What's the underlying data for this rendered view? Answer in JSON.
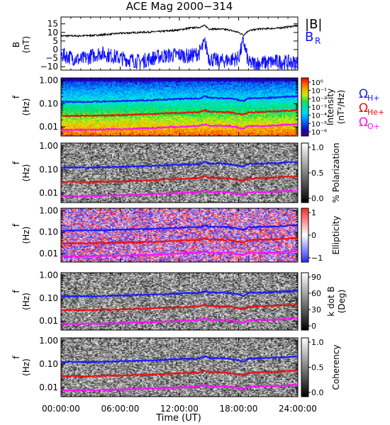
{
  "title": "ACE Mag 2000−314",
  "xlabel": "Time (UT)",
  "xticks": [
    "00:00:00",
    "06:00:00",
    "12:00:00",
    "18:00:00",
    "24:00:00"
  ],
  "freq_ticks": [
    "1.00",
    "0.10",
    "0.01"
  ],
  "legend": {
    "B_total": "|B|",
    "B_R": "B",
    "B_R_sub": "R",
    "omega_H": "Ω",
    "omega_H_sub": "H+",
    "omega_He": "Ω",
    "omega_He_sub": "He+",
    "omega_O": "Ω",
    "omega_O_sub": "O+"
  },
  "colors": {
    "B_total": "#000000",
    "B_R": "#1010ff",
    "H_plus": "#1a1aff",
    "He_plus": "#e81010",
    "O_plus": "#ff10ff"
  },
  "chart_data": [
    {
      "type": "line",
      "panel": "magnetic-field",
      "ylabel": "B",
      "yunit": "(nT)",
      "yticks": [
        "15",
        "10",
        "5",
        "0",
        "−5",
        "−10"
      ],
      "ylim": [
        -12,
        19
      ],
      "x_hours": [
        0,
        2,
        4,
        6,
        8,
        10,
        12,
        13,
        14,
        14.6,
        15,
        16,
        17,
        18,
        18.5,
        19,
        20,
        22,
        24
      ],
      "series": [
        {
          "name": "|B|",
          "values": [
            8,
            8,
            8.5,
            9.5,
            10,
            10.5,
            11.5,
            12.5,
            13,
            14,
            12,
            12,
            11.5,
            10,
            8.5,
            11,
            12,
            12.5,
            14
          ]
        },
        {
          "name": "B_R",
          "values": [
            -3,
            -6,
            -2,
            -5,
            -7,
            -4,
            -3,
            -4,
            -2,
            4,
            -5,
            -7,
            -6,
            -5,
            5,
            -8,
            -8,
            -7,
            -8
          ]
        }
      ]
    },
    {
      "type": "heatmap",
      "panel": "power-spectral-density",
      "ylabel": "f",
      "yunit": "(Hz)",
      "yscale": "log",
      "ylim": [
        0.004,
        1.3
      ],
      "colorbar_label": "Intensity",
      "colorbar_unit": "(nT²/Hz)",
      "colorbar_ticks": [
        "10⁰",
        "10⁻¹",
        "10⁻²",
        "10⁻³",
        "10⁻⁴",
        "10⁻⁵",
        "10⁻⁶"
      ]
    },
    {
      "type": "heatmap",
      "panel": "percent-polarization",
      "ylabel": "f",
      "yunit": "(Hz)",
      "yscale": "log",
      "colorbar_label": "% Polarization",
      "colorbar_ticks": [
        "1.0",
        "0.5",
        "0.0"
      ]
    },
    {
      "type": "heatmap",
      "panel": "ellipticity",
      "ylabel": "f",
      "yunit": "(Hz)",
      "yscale": "log",
      "colorbar_label": "Ellipticity",
      "colorbar_ticks": [
        "1",
        "0",
        "−1"
      ]
    },
    {
      "type": "heatmap",
      "panel": "k-dot-b",
      "ylabel": "f",
      "yunit": "(Hz)",
      "yscale": "log",
      "colorbar_label": "k dot B",
      "colorbar_unit": "(Deg)",
      "colorbar_ticks": [
        "90",
        "60",
        "30",
        "0"
      ]
    },
    {
      "type": "heatmap",
      "panel": "coherency",
      "ylabel": "f",
      "yunit": "(Hz)",
      "yscale": "log",
      "colorbar_label": "Coherency",
      "colorbar_ticks": [
        "1.0",
        "0.5",
        "0.0"
      ]
    },
    {
      "type": "line",
      "panel": "gyrofrequency-overlays",
      "x_hours": [
        0,
        3,
        6,
        9,
        12,
        14,
        14.6,
        15,
        17,
        18.5,
        19,
        21,
        24
      ],
      "series": [
        {
          "name": "H+",
          "values": [
            0.12,
            0.12,
            0.13,
            0.14,
            0.16,
            0.17,
            0.21,
            0.18,
            0.17,
            0.13,
            0.17,
            0.18,
            0.21
          ]
        },
        {
          "name": "He+",
          "values": [
            0.03,
            0.03,
            0.032,
            0.035,
            0.04,
            0.043,
            0.052,
            0.045,
            0.043,
            0.033,
            0.042,
            0.045,
            0.052
          ]
        },
        {
          "name": "O+",
          "values": [
            0.0075,
            0.0075,
            0.008,
            0.0088,
            0.01,
            0.011,
            0.013,
            0.011,
            0.011,
            0.0083,
            0.011,
            0.011,
            0.013
          ]
        }
      ]
    }
  ]
}
